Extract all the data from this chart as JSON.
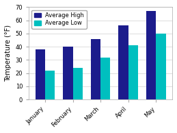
{
  "months": [
    "January",
    "February",
    "March",
    "April",
    "May"
  ],
  "avg_high": [
    38,
    40,
    46,
    56,
    67
  ],
  "avg_low": [
    22,
    24,
    32,
    41,
    50
  ],
  "color_high": "#1c1c8c",
  "color_low": "#00bfbf",
  "ylabel": "Temperature (°F)",
  "ylim": [
    0,
    70
  ],
  "yticks": [
    0,
    10,
    20,
    30,
    40,
    50,
    60,
    70
  ],
  "legend_high": "Average High",
  "legend_low": "Average Low",
  "bg_color": "#ffffff",
  "label_fontsize": 7,
  "tick_fontsize": 6,
  "bar_width": 0.35,
  "grid_color": "#d8d8d8"
}
